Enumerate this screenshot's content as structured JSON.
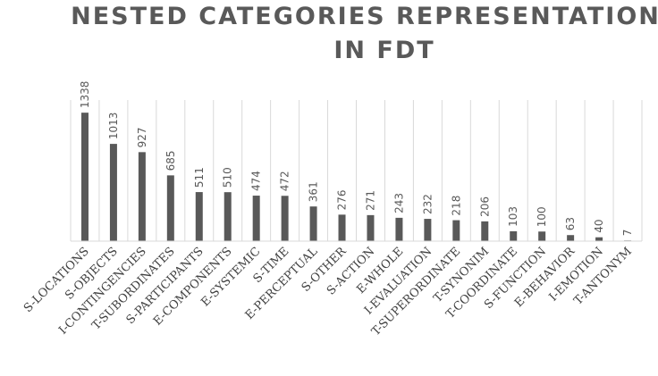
{
  "chart_data": {
    "type": "bar",
    "title": "NESTED CATEGORIES REPRESENTATION IN FDT",
    "title_lines": [
      "NESTED CATEGORIES REPRESENTATION",
      "IN FDT"
    ],
    "categories": [
      "S-LOCATIONS",
      "S-OBJECTS",
      "I-CONTINGENCIES",
      "T-SUBORDINATES",
      "S-PARTICIPANTS",
      "E-COMPONENTS",
      "E-SYSTEMIC",
      "S-TIME",
      "E-PERCEPTUAL",
      "S-OTHER",
      "S-ACTION",
      "E-WHOLE",
      "I-EVALUATION",
      "T-SUPERORDINATE",
      "T-SYNONIM",
      "T-COORDINATE",
      "S-FUNCTION",
      "E-BEHAVIOR",
      "I-EMOTION",
      "T-ANTONYM"
    ],
    "values": [
      1338,
      1013,
      927,
      685,
      511,
      510,
      474,
      472,
      361,
      276,
      271,
      243,
      232,
      218,
      206,
      103,
      100,
      63,
      40,
      7
    ],
    "xlabel": "",
    "ylabel": "",
    "ylim": [
      0,
      1600
    ],
    "grid": "vertical category separators",
    "legend": "none",
    "data_labels": "vertical, above bars",
    "bar_color": "#595959"
  }
}
